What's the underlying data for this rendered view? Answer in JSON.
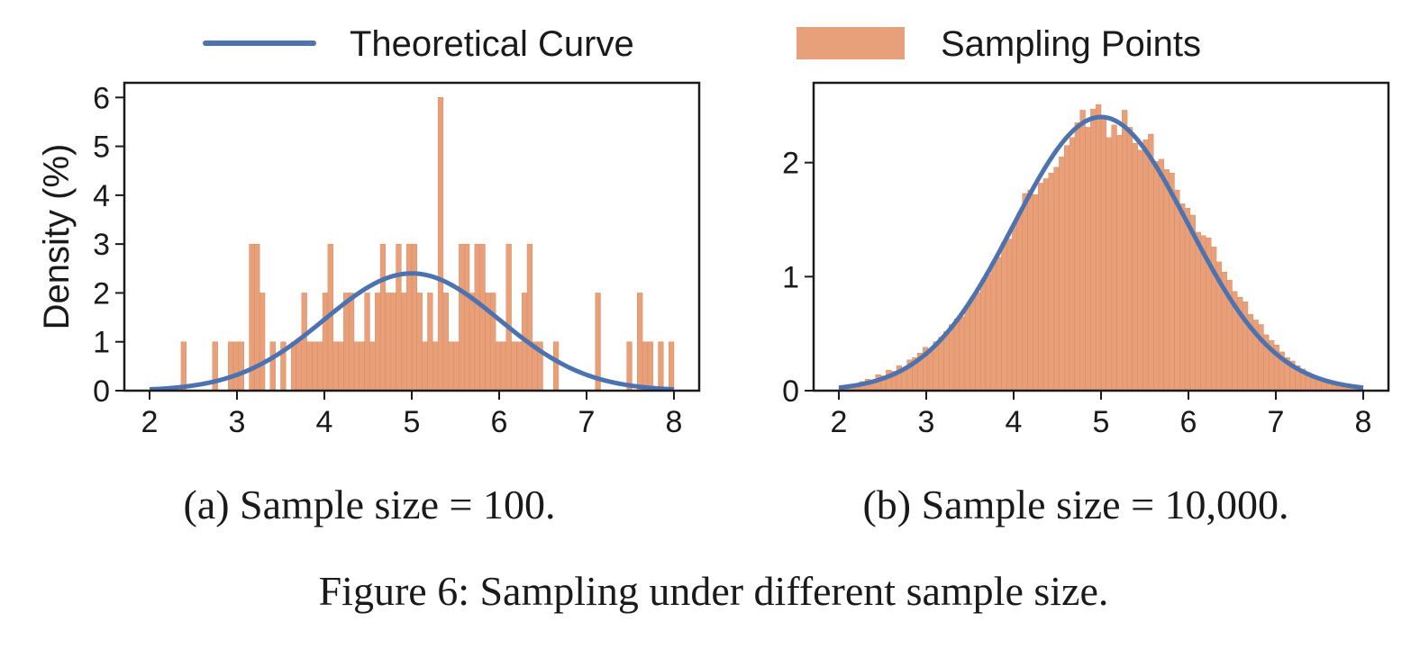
{
  "legend": {
    "line_label": "Theoretical Curve",
    "bar_label": "Sampling Points"
  },
  "colors": {
    "curve": "#4c72b0",
    "bars": "#e8a07a",
    "bar_edge": "#dd8452",
    "frame": "#1a1a1a"
  },
  "figure_caption": "Figure 6: Sampling under different sample size.",
  "chart_data": [
    {
      "type": "bar",
      "panel": "a",
      "caption": "(a) Sample size = 100.",
      "ylabel": "Density (%)",
      "xlim": [
        2,
        8
      ],
      "ylim": [
        0,
        6.3
      ],
      "xticks": [
        "2",
        "3",
        "4",
        "5",
        "6",
        "7",
        "8"
      ],
      "yticks": [
        "0",
        "1",
        "2",
        "3",
        "4",
        "5",
        "6"
      ],
      "bin_width": 0.06,
      "histogram": {
        "x": [
          2.36,
          2.72,
          2.9,
          2.96,
          3.02,
          3.14,
          3.2,
          3.26,
          3.38,
          3.5,
          3.62,
          3.68,
          3.74,
          3.8,
          3.86,
          3.92,
          3.98,
          4.04,
          4.1,
          4.16,
          4.22,
          4.28,
          4.34,
          4.4,
          4.46,
          4.52,
          4.58,
          4.64,
          4.7,
          4.76,
          4.82,
          4.88,
          4.94,
          5.0,
          5.06,
          5.12,
          5.18,
          5.24,
          5.3,
          5.36,
          5.42,
          5.48,
          5.54,
          5.6,
          5.66,
          5.72,
          5.78,
          5.84,
          5.9,
          5.96,
          6.02,
          6.08,
          6.14,
          6.2,
          6.26,
          6.32,
          6.38,
          6.44,
          6.62,
          7.1,
          7.46,
          7.58,
          7.64,
          7.7,
          7.82,
          7.94
        ],
        "values": [
          1,
          1,
          1,
          1,
          1,
          3,
          3,
          2,
          1,
          1,
          1,
          1,
          2,
          1,
          1,
          1,
          2,
          3,
          1,
          1,
          2,
          2,
          1,
          1,
          2,
          1,
          2,
          3,
          2,
          2,
          3,
          2,
          3,
          3,
          2,
          1,
          2,
          1,
          6,
          2,
          1,
          1,
          3,
          3,
          2,
          3,
          3,
          2,
          2,
          1,
          1,
          3,
          1,
          1,
          2,
          3,
          1,
          1,
          1,
          2,
          1,
          2,
          1,
          1,
          1,
          1
        ]
      },
      "curve": {
        "type": "normal",
        "mean": 5,
        "std": 1,
        "peak": 2.4
      }
    },
    {
      "type": "bar",
      "panel": "b",
      "caption": "(b) Sample size = 10,000.",
      "ylabel": "",
      "xlim": [
        2,
        8
      ],
      "ylim": [
        0,
        2.7
      ],
      "xticks": [
        "2",
        "3",
        "4",
        "5",
        "6",
        "7",
        "8"
      ],
      "yticks": [
        "0",
        "1",
        "2"
      ],
      "bin_width": 0.06,
      "histogram": {
        "x": [
          2.0,
          2.06,
          2.12,
          2.18,
          2.24,
          2.3,
          2.36,
          2.42,
          2.48,
          2.54,
          2.6,
          2.66,
          2.72,
          2.78,
          2.84,
          2.9,
          2.96,
          3.02,
          3.08,
          3.14,
          3.2,
          3.26,
          3.32,
          3.38,
          3.44,
          3.5,
          3.56,
          3.62,
          3.68,
          3.74,
          3.8,
          3.86,
          3.92,
          3.98,
          4.04,
          4.1,
          4.16,
          4.22,
          4.28,
          4.34,
          4.4,
          4.46,
          4.52,
          4.58,
          4.64,
          4.7,
          4.76,
          4.82,
          4.88,
          4.94,
          5.0,
          5.06,
          5.12,
          5.18,
          5.24,
          5.3,
          5.36,
          5.42,
          5.48,
          5.54,
          5.6,
          5.66,
          5.72,
          5.78,
          5.84,
          5.9,
          5.96,
          6.02,
          6.08,
          6.14,
          6.2,
          6.26,
          6.32,
          6.38,
          6.44,
          6.5,
          6.56,
          6.62,
          6.68,
          6.74,
          6.8,
          6.86,
          6.92,
          6.98,
          7.04,
          7.1,
          7.16,
          7.22,
          7.28,
          7.34,
          7.4,
          7.46,
          7.52,
          7.58,
          7.64,
          7.7,
          7.76,
          7.82,
          7.88,
          7.94
        ],
        "values": [
          0.03,
          0.04,
          0.05,
          0.06,
          0.08,
          0.1,
          0.09,
          0.14,
          0.13,
          0.18,
          0.17,
          0.22,
          0.2,
          0.27,
          0.29,
          0.33,
          0.38,
          0.36,
          0.43,
          0.47,
          0.52,
          0.58,
          0.63,
          0.65,
          0.74,
          0.82,
          0.86,
          0.97,
          1.02,
          1.13,
          1.17,
          1.3,
          1.33,
          1.47,
          1.56,
          1.73,
          1.76,
          1.72,
          1.82,
          1.86,
          1.91,
          1.96,
          2.05,
          2.15,
          2.22,
          2.35,
          2.46,
          2.31,
          2.47,
          2.51,
          2.4,
          2.22,
          2.33,
          2.24,
          2.46,
          2.31,
          2.17,
          2.11,
          2.2,
          2.25,
          2.01,
          2.03,
          1.94,
          1.91,
          1.76,
          1.64,
          1.6,
          1.54,
          1.39,
          1.36,
          1.34,
          1.26,
          1.13,
          1.04,
          0.97,
          0.87,
          0.82,
          0.78,
          0.67,
          0.62,
          0.58,
          0.49,
          0.44,
          0.4,
          0.34,
          0.29,
          0.26,
          0.22,
          0.19,
          0.16,
          0.13,
          0.11,
          0.09,
          0.08,
          0.06,
          0.05,
          0.04,
          0.03,
          0.02,
          0.02
        ]
      },
      "curve": {
        "type": "normal",
        "mean": 5,
        "std": 1,
        "peak": 2.4
      }
    }
  ]
}
